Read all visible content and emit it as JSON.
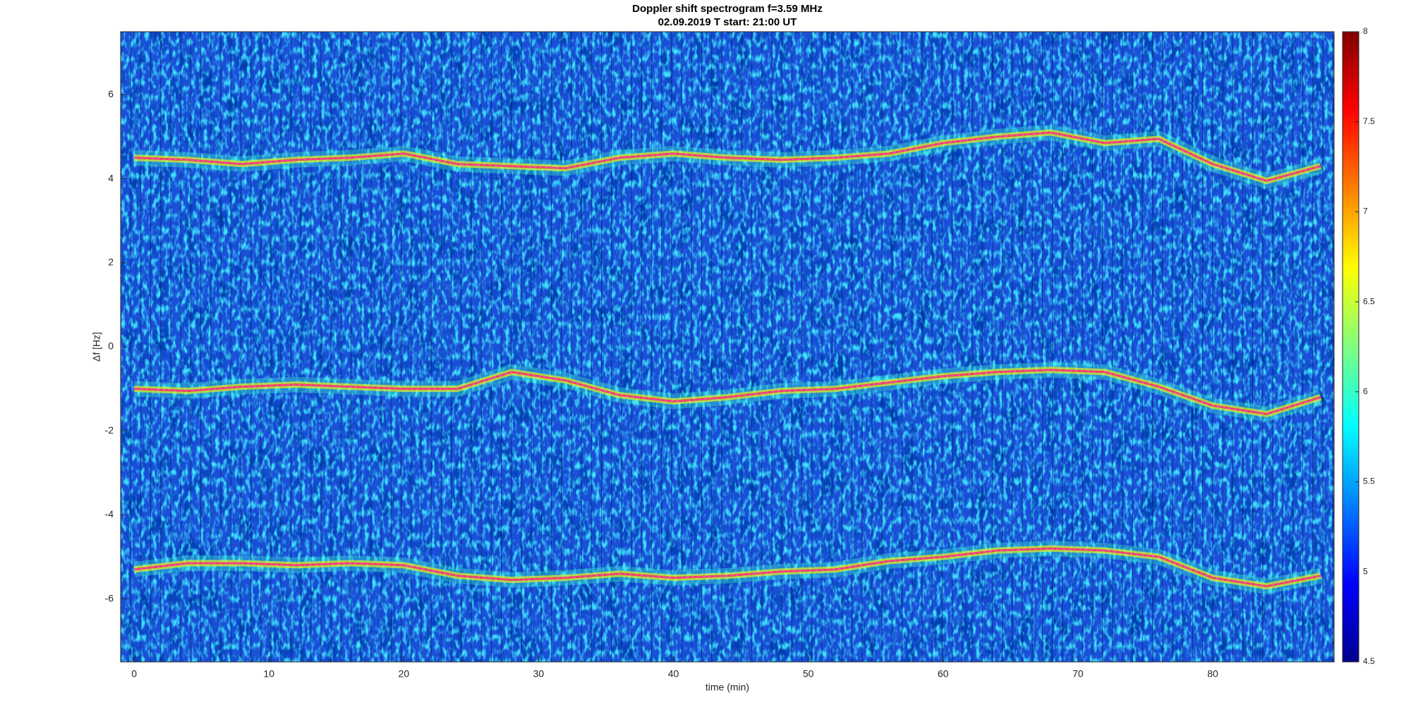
{
  "chart_data": {
    "type": "spectrogram",
    "title": "Doppler shift spectrogram f=3.59 MHz",
    "subtitle": "02.09.2019   T start: 21:00 UT",
    "x_label": "time (min)",
    "y_label": "Δf [Hz]",
    "xlim": [
      -1,
      89
    ],
    "xticks": [
      0,
      10,
      20,
      30,
      40,
      50,
      60,
      70,
      80
    ],
    "ylim": [
      -7.5,
      7.5
    ],
    "yticks": [
      -6,
      -4,
      -2,
      0,
      2,
      4,
      6
    ],
    "colorbar": {
      "colormap": "jet",
      "lim": [
        4.5,
        8
      ],
      "ticks": [
        4.5,
        5,
        5.5,
        6,
        6.5,
        7,
        7.5,
        8
      ]
    },
    "x": [
      0,
      4,
      8,
      12,
      16,
      20,
      24,
      28,
      32,
      36,
      40,
      44,
      48,
      52,
      56,
      60,
      64,
      68,
      72,
      76,
      80,
      84,
      88
    ],
    "series": [
      {
        "color": "#ff40ff",
        "values": [
          4.5,
          4.45,
          4.35,
          4.45,
          4.5,
          4.6,
          4.35,
          4.3,
          4.25,
          4.5,
          4.6,
          4.5,
          4.45,
          4.5,
          4.6,
          4.85,
          5.0,
          5.1,
          4.85,
          4.95,
          4.35,
          3.95,
          4.3
        ]
      },
      {
        "color": "#ff40ff",
        "values": [
          -1,
          -1.05,
          -0.95,
          -0.9,
          -0.95,
          -1.0,
          -1.0,
          -0.6,
          -0.8,
          -1.15,
          -1.3,
          -1.2,
          -1.05,
          -1.0,
          -0.85,
          -0.7,
          -0.6,
          -0.55,
          -0.6,
          -0.95,
          -1.4,
          -1.6,
          -1.2
        ]
      },
      {
        "color": "#ff40ff",
        "values": [
          -5.3,
          -5.15,
          -5.15,
          -5.2,
          -5.15,
          -5.2,
          -5.45,
          -5.55,
          -5.5,
          -5.4,
          -5.5,
          -5.45,
          -5.35,
          -5.3,
          -5.1,
          -5.0,
          -4.85,
          -4.8,
          -4.85,
          -5.0,
          -5.5,
          -5.7,
          -5.45
        ]
      }
    ]
  }
}
